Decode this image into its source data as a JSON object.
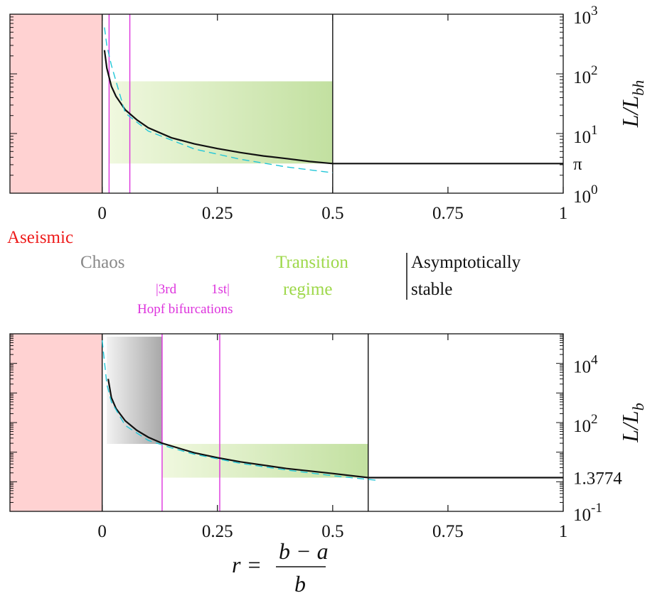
{
  "chart_data": [
    {
      "type": "line",
      "ylabel_main": "L/L",
      "ylabel_sub": "bh",
      "yscale": "log",
      "xlim": [
        -0.2,
        1
      ],
      "ylim": [
        1,
        1000
      ],
      "x_ticks": [
        {
          "value": 0,
          "label": "0"
        },
        {
          "value": 0.25,
          "label": "0.25"
        },
        {
          "value": 0.5,
          "label": "0.5"
        },
        {
          "value": 0.75,
          "label": "0.75"
        },
        {
          "value": 1,
          "label": "1"
        }
      ],
      "y_ticks": [
        {
          "value": 1,
          "base": "10",
          "exp": "0"
        },
        {
          "value": 10,
          "base": "10",
          "exp": "1"
        },
        {
          "value": 100,
          "base": "10",
          "exp": "2"
        },
        {
          "value": 1000,
          "base": "10",
          "exp": "3"
        }
      ],
      "special_tick": {
        "value": 3.1416,
        "label": "π"
      },
      "regions": {
        "aseismic": [
          -0.2,
          0
        ],
        "transition": {
          "x": [
            0.015,
            0.5
          ],
          "y": [
            3.1416,
            75
          ]
        }
      },
      "vlines": {
        "hopf": [
          0.015,
          0.06
        ],
        "boundary": [
          0,
          0.5
        ]
      },
      "series": [
        {
          "values_x": [
            0.005,
            0.01,
            0.02,
            0.03,
            0.05,
            0.075,
            0.1,
            0.15,
            0.2,
            0.25,
            0.3,
            0.35,
            0.4,
            0.45,
            0.5,
            0.6,
            0.7,
            0.8,
            0.9,
            1.0
          ],
          "values_y": [
            250,
            125,
            62,
            42,
            25,
            17,
            12.5,
            8.5,
            6.7,
            5.6,
            4.8,
            4.2,
            3.8,
            3.4,
            3.14,
            3.14,
            3.14,
            3.14,
            3.14,
            3.14
          ],
          "color": "#111111"
        },
        {
          "values_x": [
            0.005,
            0.01,
            0.02,
            0.05,
            0.1,
            0.2,
            0.3,
            0.4,
            0.5
          ],
          "values_y": [
            600,
            300,
            140,
            22,
            11,
            5.5,
            3.7,
            2.75,
            2.2
          ],
          "color": "#22c6d8",
          "dashed": true
        }
      ]
    },
    {
      "type": "line",
      "xlabel": "r =",
      "xlabel_num": "b − a",
      "xlabel_den": "b",
      "ylabel_main": "L/L",
      "ylabel_sub": "b",
      "yscale": "log",
      "xlim": [
        -0.2,
        1
      ],
      "ylim": [
        0.1,
        100000
      ],
      "x_ticks": [
        {
          "value": 0,
          "label": "0"
        },
        {
          "value": 0.25,
          "label": "0.25"
        },
        {
          "value": 0.5,
          "label": "0.5"
        },
        {
          "value": 0.75,
          "label": "0.75"
        },
        {
          "value": 1,
          "label": "1"
        }
      ],
      "y_ticks": [
        {
          "value": 0.1,
          "base": "10",
          "exp": "-1"
        },
        {
          "value": 100,
          "base": "10",
          "exp": "2"
        },
        {
          "value": 10000,
          "base": "10",
          "exp": "4"
        }
      ],
      "special_tick": {
        "value": 1.3774,
        "label": "1.3774"
      },
      "regions": {
        "aseismic": [
          -0.2,
          0
        ],
        "chaos": {
          "x": [
            0.01,
            0.13
          ],
          "y": [
            19,
            80000
          ]
        },
        "transition": {
          "x": [
            0.13,
            0.577
          ],
          "y": [
            1.3774,
            19
          ]
        }
      },
      "vlines": {
        "hopf": [
          0.13,
          0.255
        ],
        "boundary": [
          0,
          0.577
        ]
      },
      "series": [
        {
          "values_x": [
            0.013,
            0.02,
            0.03,
            0.05,
            0.075,
            0.1,
            0.13,
            0.2,
            0.25,
            0.3,
            0.4,
            0.5,
            0.577,
            0.7,
            0.8,
            0.9,
            1.0
          ],
          "values_y": [
            3000,
            700,
            300,
            115,
            55,
            32,
            20,
            9.5,
            6.5,
            4.7,
            2.8,
            1.9,
            1.3774,
            1.3774,
            1.3774,
            1.3774,
            1.3774
          ],
          "color": "#111111"
        },
        {
          "values_x": [
            0.0,
            0.01,
            0.02,
            0.05,
            0.1,
            0.15,
            0.2,
            0.3,
            0.4,
            0.5,
            0.6
          ],
          "values_y": [
            60000,
            2000,
            500,
            80,
            25,
            14,
            8.5,
            4.2,
            2.5,
            1.6,
            1.1
          ],
          "color": "#22c6d8",
          "dashed": true
        }
      ]
    }
  ],
  "labels": {
    "aseismic": "Aseismic",
    "chaos": "Chaos",
    "third": "|3rd",
    "first": "1st|",
    "hopf": "Hopf bifurcations",
    "transition_1": "Transition",
    "transition_2": "regime",
    "asymptotic_1": "Asymptotically",
    "asymptotic_2": "stable"
  },
  "colors": {
    "aseismic": "#ffd2d2",
    "aseismic_text": "#ee1b1b",
    "chaos_text": "#888888",
    "transition_text": "#9ed84a",
    "hopf": "#dd33dd",
    "green_light": "#f0f8df",
    "green_dark": "#c2e0a0",
    "gray_light": "#f2f2f2",
    "gray_dark": "#a8a8a8"
  }
}
